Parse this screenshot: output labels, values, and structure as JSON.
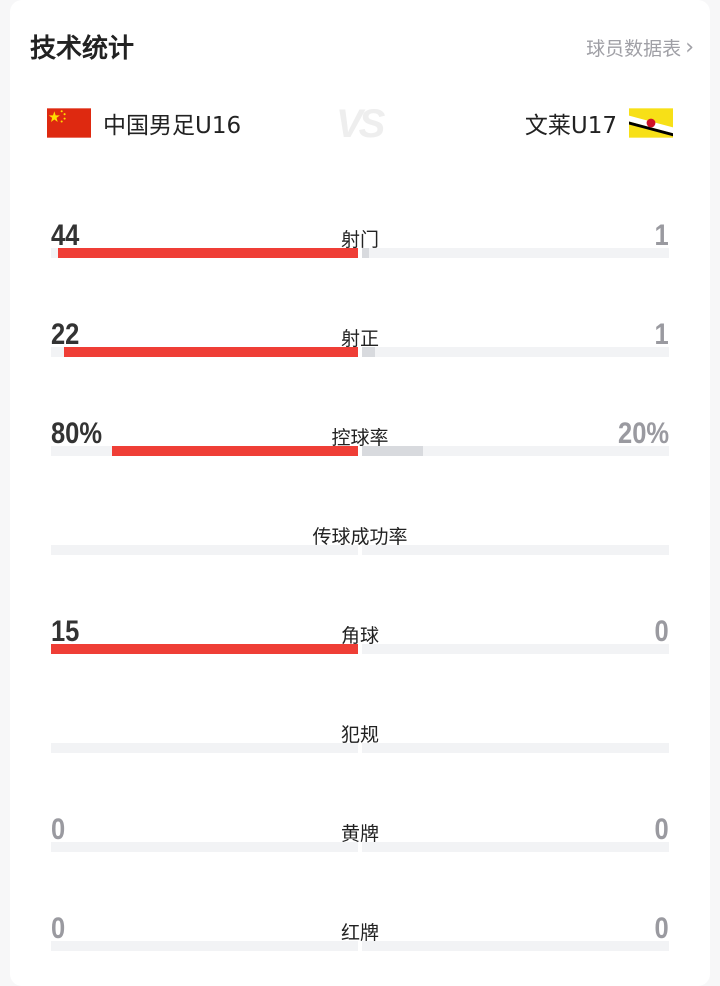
{
  "header": {
    "title": "技术统计",
    "more_link": "球员数据表"
  },
  "teams": {
    "home": {
      "name": "中国男足U16",
      "flag": "china-flag"
    },
    "vs": "VS",
    "away": {
      "name": "文莱U17",
      "flag": "brunei-flag"
    }
  },
  "colors": {
    "home_bar": "#ef3e36",
    "away_bar": "#d8dade",
    "winner_text": "#333333",
    "loser_text": "#9a9aa0"
  },
  "stats": [
    {
      "label": "射门",
      "home": "44",
      "away": "1",
      "home_frac": 0.978,
      "away_frac": 0.022
    },
    {
      "label": "射正",
      "home": "22",
      "away": "1",
      "home_frac": 0.957,
      "away_frac": 0.043
    },
    {
      "label": "控球率",
      "home": "80%",
      "away": "20%",
      "home_frac": 0.8,
      "away_frac": 0.2
    },
    {
      "label": "传球成功率",
      "home": "",
      "away": "",
      "home_frac": 0,
      "away_frac": 0
    },
    {
      "label": "角球",
      "home": "15",
      "away": "0",
      "home_frac": 1,
      "away_frac": 0
    },
    {
      "label": "犯规",
      "home": "",
      "away": "",
      "home_frac": 0,
      "away_frac": 0
    },
    {
      "label": "黄牌",
      "home": "0",
      "away": "0",
      "home_frac": 0,
      "away_frac": 0
    },
    {
      "label": "红牌",
      "home": "0",
      "away": "0",
      "home_frac": 0,
      "away_frac": 0
    }
  ]
}
